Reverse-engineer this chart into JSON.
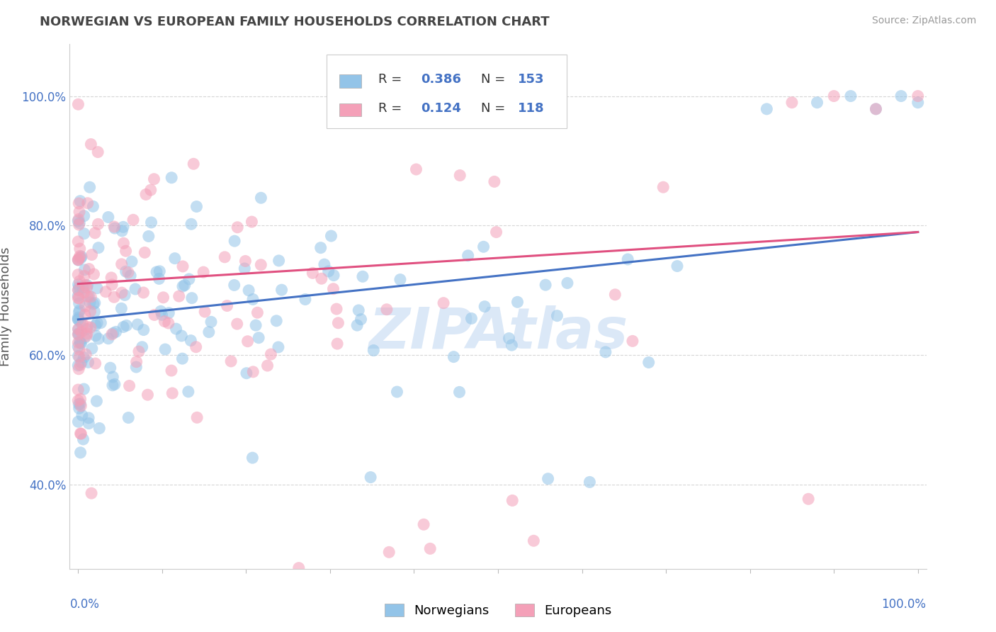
{
  "title": "NORWEGIAN VS EUROPEAN FAMILY HOUSEHOLDS CORRELATION CHART",
  "source": "Source: ZipAtlas.com",
  "ylabel": "Family Households",
  "norwegian_color": "#93c4e8",
  "european_color": "#f4a0b8",
  "norwegian_line_color": "#4472c4",
  "european_line_color": "#e05080",
  "background_color": "#ffffff",
  "grid_color": "#cccccc",
  "watermark_text": "ZIPAtlas",
  "watermark_color": "#c8d8f0",
  "title_color": "#444444",
  "axis_label_color": "#4472c4",
  "ytick_color": "#4472c4",
  "ytick_labels": [
    "40.0%",
    "60.0%",
    "80.0%",
    "100.0%"
  ],
  "ytick_values": [
    0.4,
    0.6,
    0.8,
    1.0
  ],
  "R_norwegian": 0.386,
  "R_european": 0.124,
  "N_norwegian": 153,
  "N_european": 118
}
